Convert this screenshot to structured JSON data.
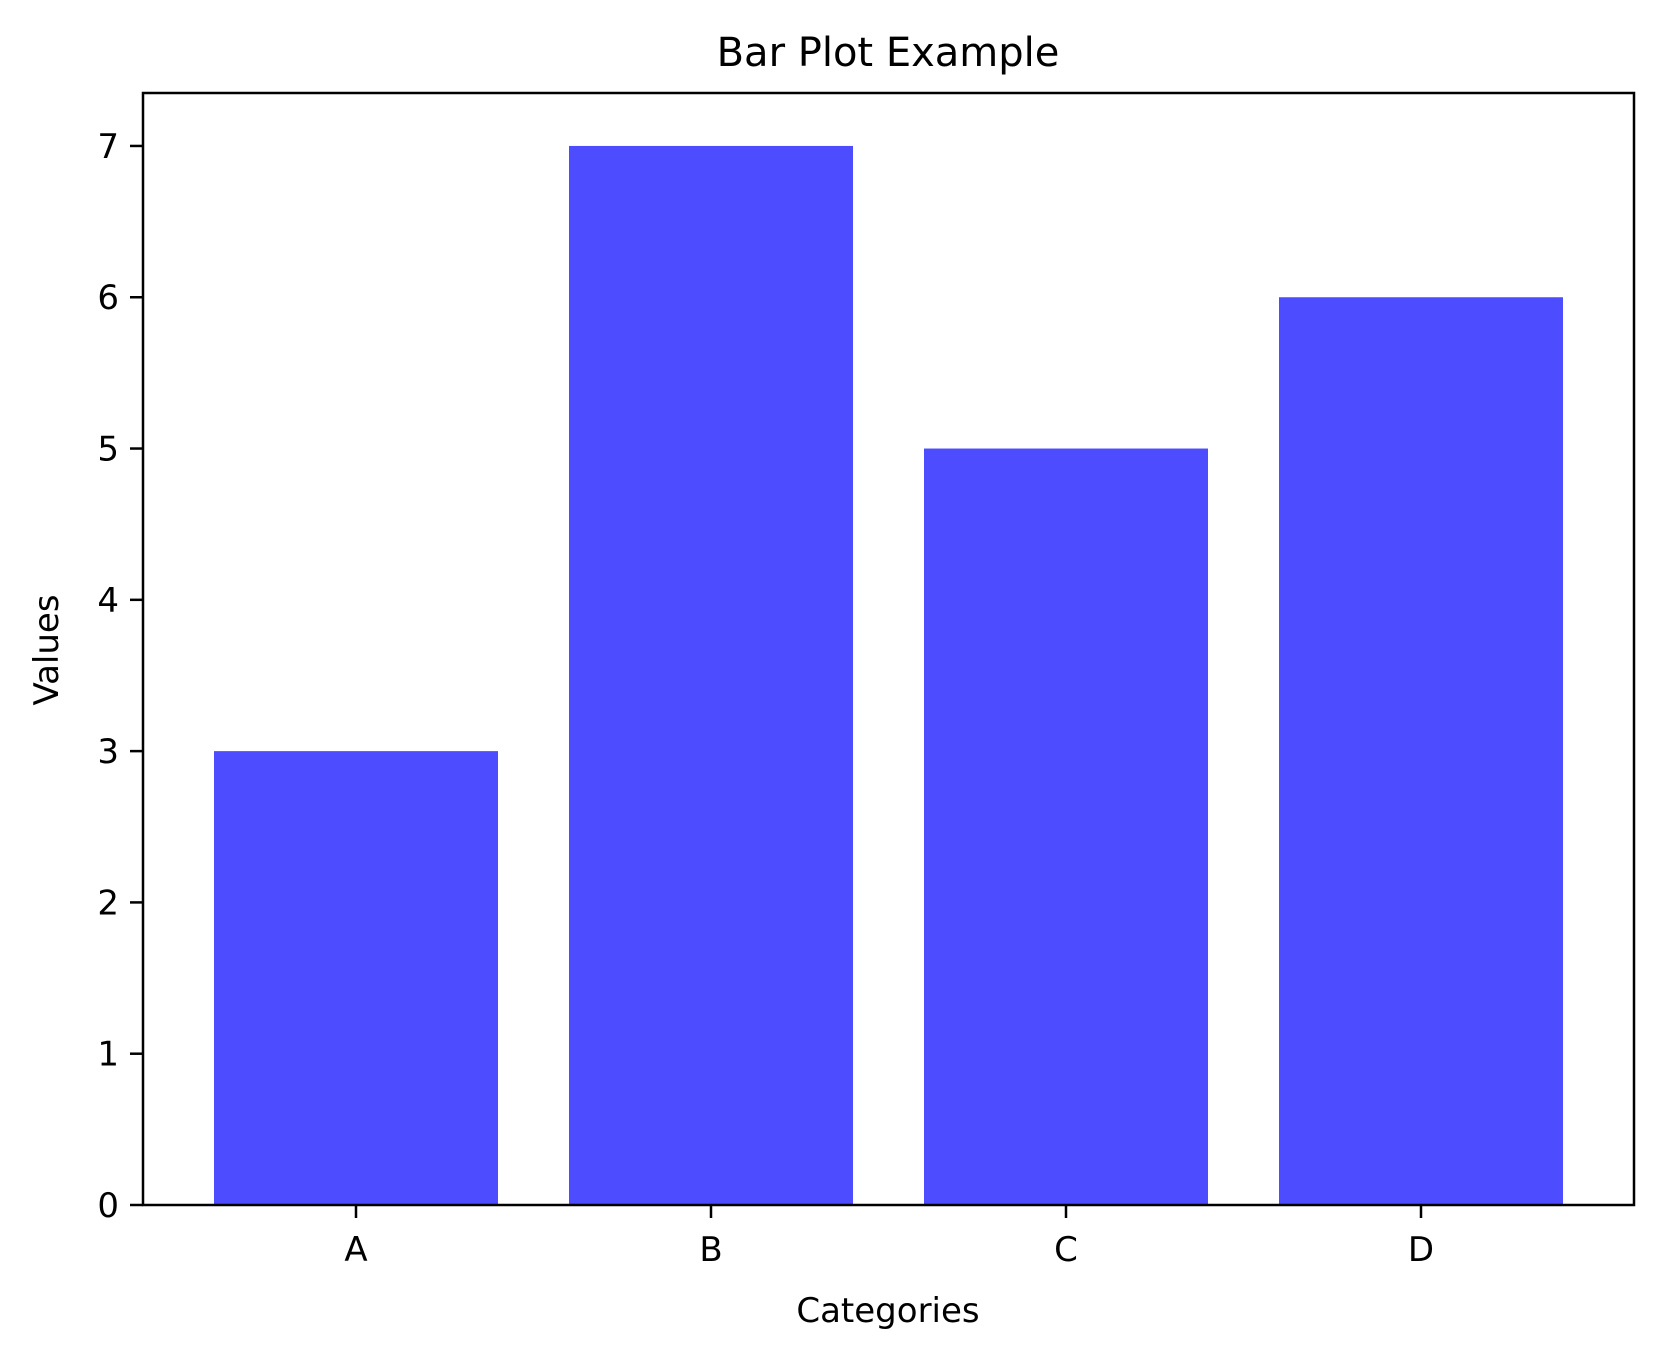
{
  "chart_data": {
    "type": "bar",
    "title": "Bar Plot Example",
    "xlabel": "Categories",
    "ylabel": "Values",
    "categories": [
      "A",
      "B",
      "C",
      "D"
    ],
    "values": [
      3,
      7,
      5,
      6
    ],
    "ylim": [
      0,
      7.35
    ],
    "yticks": [
      0,
      1,
      2,
      3,
      4,
      5,
      6,
      7
    ],
    "bar_color": "#4d4dff",
    "grid": false,
    "legend": "none"
  }
}
